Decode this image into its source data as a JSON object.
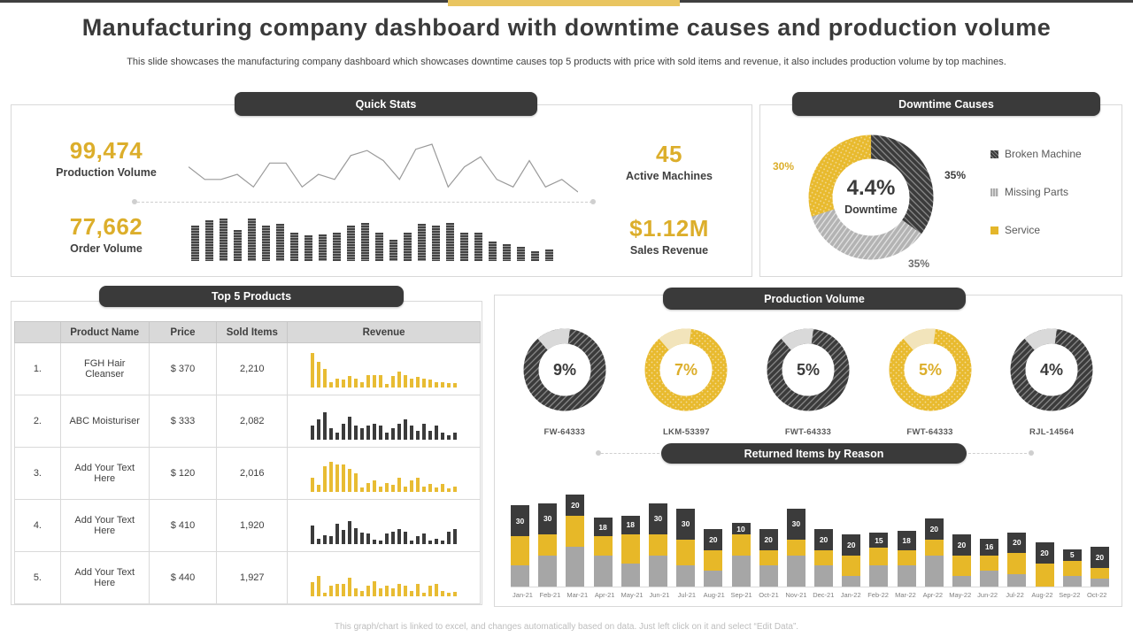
{
  "page": {
    "title": "Manufacturing company dashboard with downtime causes and production volume",
    "subtitle": "This slide showcases the manufacturing company dashboard which showcases downtime causes top 5 products with price with sold items and revenue, it also includes production volume by top machines.",
    "footer": "This graph/chart is linked to excel, and changes automatically based on data. Just left click on it and select “Edit Data”."
  },
  "colors": {
    "accent_yellow": "#DCAE2B",
    "dark": "#3B3B3B",
    "gray": "#ABABAB",
    "light_gray": "#D9D9D9"
  },
  "quick_stats": {
    "header": "Quick Stats",
    "stats": [
      {
        "value": "99,474",
        "label": "Production Volume"
      },
      {
        "value": "77,662",
        "label": "Order Volume"
      },
      {
        "value": "45",
        "label": "Active Machines"
      },
      {
        "value": "$1.12M",
        "label": "Sales Revenue"
      }
    ]
  },
  "downtime": {
    "header": "Downtime Causes",
    "center_value": "4.4%",
    "center_label": "Downtime",
    "labels": {
      "broken": "35%",
      "missing": "35%",
      "service": "30%"
    },
    "legend": [
      {
        "name": "Broken Machine",
        "variant": "dark"
      },
      {
        "name": "Missing Parts",
        "variant": "gray"
      },
      {
        "name": "Service",
        "variant": "yellow"
      }
    ]
  },
  "top_products": {
    "header": "Top 5 Products",
    "columns": [
      "",
      "Product Name",
      "Price",
      "Sold Items",
      "Revenue"
    ],
    "rows": [
      {
        "rank": "1.",
        "name": "FGH Hair Cleanser",
        "price": "$ 370",
        "sold": "2,210",
        "spark": "yellow"
      },
      {
        "rank": "2.",
        "name": "ABC Moisturiser",
        "price": "$ 333",
        "sold": "2,082",
        "spark": "dark"
      },
      {
        "rank": "3.",
        "name": "Add Your Text Here",
        "price": "$ 120",
        "sold": "2,016",
        "spark": "yellow"
      },
      {
        "rank": "4.",
        "name": "Add Your Text Here",
        "price": "$ 410",
        "sold": "1,920",
        "spark": "dark"
      },
      {
        "rank": "5.",
        "name": "Add Your Text Here",
        "price": "$ 440",
        "sold": "1,927",
        "spark": "yellow"
      }
    ]
  },
  "production": {
    "header": "Production Volume",
    "returned_header": "Returned Items by Reason"
  },
  "chart_data": [
    {
      "id": "production-trend",
      "type": "line",
      "title": "Production Volume trend sparkline",
      "values": [
        27,
        17,
        17,
        21,
        11,
        30,
        30,
        11,
        21,
        17,
        36,
        40,
        32,
        17,
        41,
        45,
        11,
        27,
        35,
        17,
        11,
        32,
        11,
        17,
        7
      ]
    },
    {
      "id": "order-volume-bars",
      "type": "bar",
      "title": "Order Volume sparkline",
      "values": [
        25,
        29,
        30,
        22,
        30,
        25,
        26,
        20,
        18,
        19,
        20,
        25,
        27,
        20,
        15,
        20,
        26,
        25,
        27,
        20,
        20,
        14,
        12,
        10,
        7,
        8
      ]
    },
    {
      "id": "downtime-donut",
      "type": "pie",
      "title": "Downtime Causes",
      "labels": [
        "Broken Machine",
        "Missing Parts",
        "Service"
      ],
      "values": [
        35,
        35,
        30
      ],
      "center_value": "4.4%",
      "center_label": "Downtime",
      "legend_position": "right"
    },
    {
      "id": "machine-gauges",
      "type": "pie",
      "title": "Production Volume by machine",
      "gauges": [
        {
          "pct": "9%",
          "label": "FW-64333",
          "variant": "dark"
        },
        {
          "pct": "7%",
          "label": "LKM-53397",
          "variant": "yellow"
        },
        {
          "pct": "5%",
          "label": "FWT-64333",
          "variant": "dark"
        },
        {
          "pct": "5%",
          "label": "FWT-64333",
          "variant": "yellow"
        },
        {
          "pct": "4%",
          "label": "RJL-14564",
          "variant": "dark"
        }
      ]
    },
    {
      "id": "revenue-sparklines",
      "type": "bar",
      "title": "Revenue sparklines per product",
      "rows": [
        {
          "color": "yellow",
          "values": [
            30,
            22,
            16,
            5,
            8,
            7,
            10,
            8,
            5,
            11,
            11,
            11,
            3,
            10,
            14,
            11,
            8,
            9,
            8,
            7,
            5,
            5,
            4,
            4
          ]
        },
        {
          "color": "dark",
          "values": [
            12,
            18,
            24,
            10,
            6,
            14,
            20,
            12,
            10,
            12,
            14,
            12,
            6,
            10,
            14,
            18,
            12,
            8,
            14,
            8,
            12,
            6,
            4,
            6
          ]
        },
        {
          "color": "yellow",
          "values": [
            12,
            6,
            22,
            26,
            24,
            24,
            20,
            16,
            4,
            8,
            10,
            5,
            8,
            6,
            12,
            5,
            10,
            12,
            5,
            7,
            4,
            7,
            3,
            5
          ]
        },
        {
          "color": "dark",
          "values": [
            16,
            5,
            8,
            7,
            18,
            12,
            20,
            14,
            10,
            9,
            4,
            3,
            9,
            11,
            13,
            11,
            3,
            7,
            9,
            3,
            5,
            3,
            11,
            13
          ]
        },
        {
          "color": "yellow",
          "values": [
            12,
            18,
            3,
            9,
            11,
            11,
            16,
            7,
            5,
            9,
            13,
            7,
            9,
            7,
            11,
            9,
            5,
            11,
            3,
            9,
            11,
            5,
            3,
            4
          ]
        }
      ]
    },
    {
      "id": "returned-items",
      "type": "bar",
      "title": "Returned Items by Reason",
      "stacked": true,
      "categories": [
        "Jan-21",
        "Feb-21",
        "Mar-21",
        "Apr-21",
        "May-21",
        "Jun-21",
        "Jul-21",
        "Aug-21",
        "Sep-21",
        "Oct-21",
        "Nov-21",
        "Dec-21",
        "Jan-22",
        "Feb-22",
        "Mar-22",
        "Apr-22",
        "May-22",
        "Jun-22",
        "Jul-22",
        "Aug-22",
        "Sep-22",
        "Oct-22"
      ],
      "series": [
        {
          "name": "Missing Parts",
          "color": "#A6A6A6",
          "values": [
            20,
            30,
            38,
            30,
            22,
            30,
            20,
            15,
            30,
            20,
            30,
            20,
            10,
            20,
            20,
            30,
            10,
            15,
            12,
            0,
            10,
            8
          ]
        },
        {
          "name": "Service",
          "color": "#E7B828",
          "values": [
            28,
            20,
            30,
            18,
            28,
            20,
            25,
            20,
            20,
            15,
            15,
            15,
            20,
            17,
            15,
            15,
            20,
            15,
            20,
            22,
            15,
            10
          ]
        },
        {
          "name": "Broken Machine",
          "color": "#3B3B3B",
          "values": [
            30,
            30,
            20,
            18,
            18,
            30,
            30,
            20,
            10,
            20,
            30,
            20,
            20,
            15,
            18,
            20,
            20,
            16,
            20,
            20,
            5,
            20
          ],
          "data_labels": true
        }
      ]
    }
  ]
}
